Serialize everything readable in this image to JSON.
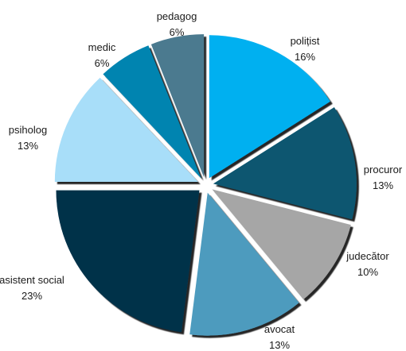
{
  "chart_data": {
    "type": "pie",
    "exploded": true,
    "title": "",
    "slices": [
      {
        "label": "polițist",
        "value": 16,
        "value_label": "16%",
        "color": "#00B0F0"
      },
      {
        "label": "procuror",
        "value": 13,
        "value_label": "13%",
        "color": "#0B5670"
      },
      {
        "label": "judecător",
        "value": 10,
        "value_label": "10%",
        "color": "#A6A6A6"
      },
      {
        "label": "avocat",
        "value": 13,
        "value_label": "13%",
        "color": "#4E9BBE"
      },
      {
        "label": "asistent social",
        "value": 23,
        "value_label": "23%",
        "color": "#003049"
      },
      {
        "label": "psiholog",
        "value": 13,
        "value_label": "13%",
        "color": "#A8DEF9"
      },
      {
        "label": "medic",
        "value": 6,
        "value_label": "6%",
        "color": "#0084B0"
      },
      {
        "label": "pedagog",
        "value": 6,
        "value_label": "6%",
        "color": "#4C7A8F"
      }
    ]
  }
}
